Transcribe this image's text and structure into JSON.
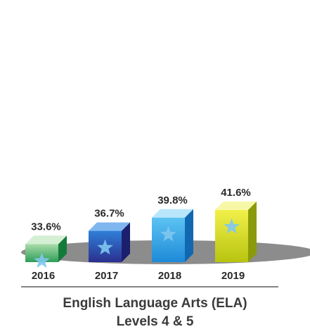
{
  "chart_data": {
    "type": "bar",
    "categories": [
      "2016",
      "2017",
      "2018",
      "2019"
    ],
    "values": [
      33.6,
      36.7,
      39.8,
      41.6
    ],
    "labels": [
      "33.6%",
      "36.7%",
      "39.8%",
      "41.6%"
    ],
    "title": "English Language Arts (ELA)",
    "subtitle": "Levels 4 & 5",
    "xlabel": "",
    "ylabel": "",
    "ylim": [
      0,
      45
    ],
    "grid": false,
    "legend": "none",
    "colors": [
      {
        "front_top": "#a9dba9",
        "front_bottom": "#2e9e57",
        "side": "#137a3a",
        "top": "#d4efd4"
      },
      {
        "front_top": "#2f7fd8",
        "front_bottom": "#2b2f8f",
        "side": "#1c1f6e",
        "top": "#7fb6f0"
      },
      {
        "front_top": "#5cc3f2",
        "front_bottom": "#1e8ad8",
        "side": "#1268b0",
        "top": "#b9e6fb"
      },
      {
        "front_top": "#f2f04a",
        "front_bottom": "#b7c40f",
        "side": "#8a9a0a",
        "top": "#f7f7a8"
      }
    ],
    "star_color": "#7fc8f0",
    "shadow_color": "#8c8c8c"
  }
}
